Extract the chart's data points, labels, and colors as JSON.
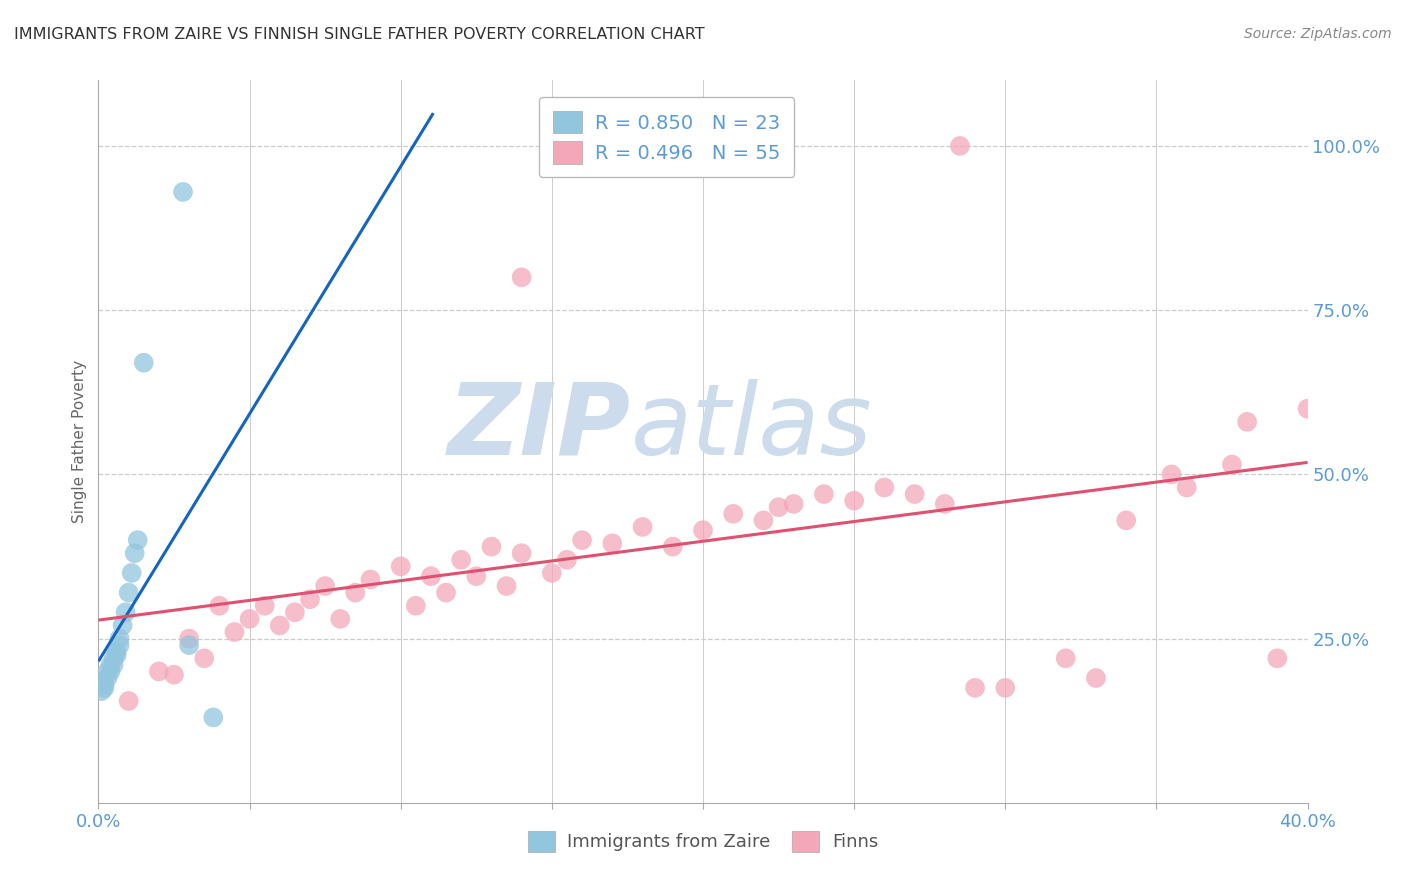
{
  "title": "IMMIGRANTS FROM ZAIRE VS FINNISH SINGLE FATHER POVERTY CORRELATION CHART",
  "source": "Source: ZipAtlas.com",
  "ylabel": "Single Father Poverty",
  "background_color": "#ffffff",
  "title_fontsize": 11.5,
  "axis_label_color": "#5b9bd5",
  "grid_color": "#cccccc",
  "blue_scatter": {
    "x": [
      0.001,
      0.002,
      0.002,
      0.003,
      0.003,
      0.004,
      0.004,
      0.005,
      0.005,
      0.006,
      0.006,
      0.007,
      0.007,
      0.008,
      0.009,
      0.01,
      0.011,
      0.012,
      0.013,
      0.015,
      0.028,
      0.03,
      0.038
    ],
    "y": [
      0.17,
      0.175,
      0.18,
      0.19,
      0.2,
      0.2,
      0.21,
      0.21,
      0.22,
      0.225,
      0.23,
      0.24,
      0.25,
      0.27,
      0.29,
      0.32,
      0.35,
      0.38,
      0.4,
      0.67,
      0.93,
      0.24,
      0.13
    ],
    "color": "#92c5de",
    "border_color": "#6aaed6",
    "R": 0.85,
    "N": 23,
    "label": "Immigrants from Zaire"
  },
  "pink_scatter": {
    "x": [
      0.01,
      0.02,
      0.025,
      0.03,
      0.035,
      0.04,
      0.045,
      0.05,
      0.055,
      0.06,
      0.065,
      0.07,
      0.075,
      0.08,
      0.085,
      0.09,
      0.1,
      0.105,
      0.11,
      0.115,
      0.12,
      0.125,
      0.13,
      0.135,
      0.14,
      0.15,
      0.155,
      0.16,
      0.17,
      0.18,
      0.19,
      0.2,
      0.21,
      0.22,
      0.225,
      0.23,
      0.24,
      0.25,
      0.26,
      0.27,
      0.28,
      0.29,
      0.3,
      0.32,
      0.33,
      0.34,
      0.355,
      0.36,
      0.375,
      0.39,
      0.14,
      0.22,
      0.285,
      0.38,
      0.4
    ],
    "y": [
      0.155,
      0.2,
      0.195,
      0.25,
      0.22,
      0.3,
      0.26,
      0.28,
      0.3,
      0.27,
      0.29,
      0.31,
      0.33,
      0.28,
      0.32,
      0.34,
      0.36,
      0.3,
      0.345,
      0.32,
      0.37,
      0.345,
      0.39,
      0.33,
      0.38,
      0.35,
      0.37,
      0.4,
      0.395,
      0.42,
      0.39,
      0.415,
      0.44,
      0.43,
      0.45,
      0.455,
      0.47,
      0.46,
      0.48,
      0.47,
      0.455,
      0.175,
      0.175,
      0.22,
      0.19,
      0.43,
      0.5,
      0.48,
      0.515,
      0.22,
      0.8,
      1.0,
      1.0,
      0.58,
      0.6
    ],
    "color": "#f4a7b9",
    "border_color": "#e87898",
    "R": 0.496,
    "N": 55,
    "label": "Finns"
  },
  "blue_line_color": "#1565c0",
  "pink_line_color": "#e05070",
  "xlim": [
    0.0,
    0.4
  ],
  "ylim": [
    0.0,
    1.1
  ],
  "xtick_positions": [
    0.0,
    0.05,
    0.1,
    0.15,
    0.2,
    0.25,
    0.3,
    0.35,
    0.4
  ],
  "xtick_labels": [
    "0.0%",
    "",
    "",
    "",
    "",
    "",
    "",
    "",
    "40.0%"
  ],
  "yticks_right": [
    0.0,
    0.25,
    0.5,
    0.75,
    1.0
  ],
  "ytick_labels_right": [
    "",
    "25.0%",
    "50.0%",
    "75.0%",
    "100.0%"
  ],
  "watermark_zip": "ZIP",
  "watermark_atlas": "atlas",
  "watermark_color": "#ccdcec",
  "scatter_size": 200,
  "scatter_alpha": 0.75
}
